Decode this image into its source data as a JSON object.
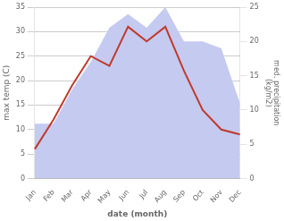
{
  "chart_data": {
    "type": "line",
    "categories": [
      "Jan",
      "Feb",
      "Mar",
      "Apr",
      "May",
      "Jun",
      "Jul",
      "Aug",
      "Sep",
      "Oct",
      "Nov",
      "Dec"
    ],
    "series": [
      {
        "type": "line",
        "color": "#c0392b",
        "values": [
          6,
          12,
          19,
          25,
          23,
          31,
          28,
          31,
          22,
          14,
          10,
          9
        ]
      },
      {
        "type": "area",
        "color": "#c5caf0",
        "axis": "y2",
        "values": [
          8,
          8,
          13,
          17,
          22,
          24,
          22,
          25,
          20,
          20,
          19,
          11
        ]
      }
    ],
    "xlabel": "date (month)",
    "ylabel": "max temp (C)",
    "y2label": "med. precipitation\n(kg/m2)",
    "ylim": [
      0,
      35
    ],
    "yticks": [
      0,
      5,
      10,
      15,
      20,
      25,
      30,
      35
    ],
    "y2lim": [
      0,
      25
    ],
    "y2ticks": [
      0,
      5,
      10,
      15,
      20,
      25
    ],
    "grid": true
  }
}
